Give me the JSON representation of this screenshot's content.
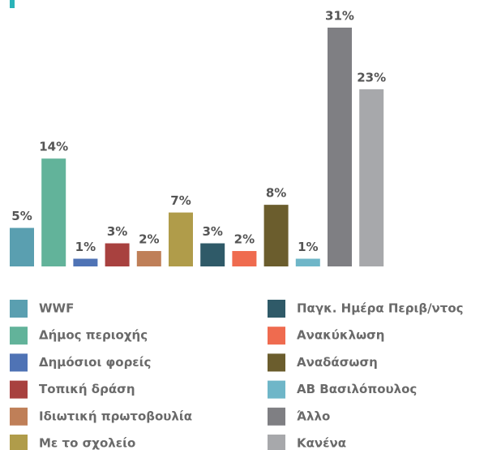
{
  "chart_data": {
    "type": "bar",
    "categories": [
      "WWF",
      "Δήμος περιοχής",
      "Δημόσιοι φορείς",
      "Τοπική δράση",
      "Ιδιωτική πρωτοβουλία",
      "Με το σχολείο",
      "Παγκ. Ημέρα Περιβ/ντος",
      "Ανακύκλωση",
      "Αναδάσωση",
      "ΑΒ Βασιλόπουλος",
      "Άλλο",
      "Κανένα"
    ],
    "values": [
      5,
      14,
      1,
      3,
      2,
      7,
      3,
      2,
      8,
      1,
      31,
      23
    ],
    "value_labels": [
      "5%",
      "14%",
      "1%",
      "3%",
      "2%",
      "7%",
      "3%",
      "2%",
      "8%",
      "1%",
      "31%",
      "23%"
    ],
    "colors": [
      "#5a9fb0",
      "#62b39a",
      "#4f73b5",
      "#a8413f",
      "#bf7f58",
      "#b09c4a",
      "#2f5a68",
      "#ef6b4f",
      "#6b5d2d",
      "#6fb6c8",
      "#7f7f83",
      "#a7a8ab"
    ]
  }
}
